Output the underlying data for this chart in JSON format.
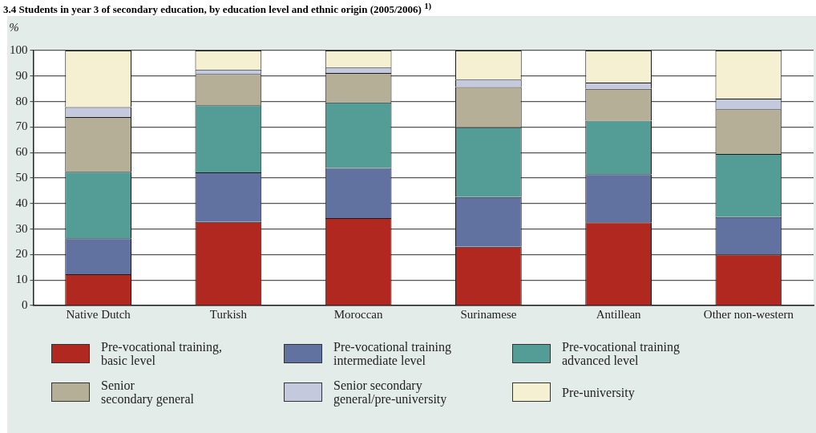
{
  "chart_data": {
    "type": "bar",
    "stacked": true,
    "title": "3.4  Students in year 3 of secondary education, by education level and ethnic origin (2005/2006) $^{1)}$",
    "ylabel": "%",
    "categories": [
      "Native Dutch",
      "Turkish",
      "Moroccan",
      "Surinamese",
      "Antillean",
      "Other non-western"
    ],
    "series": [
      {
        "name": "Pre-vocational training,\nbasic level",
        "color": "#b0281f",
        "values": [
          12.3,
          32.8,
          34.3,
          23.0,
          32.6,
          20.0
        ]
      },
      {
        "name": "Pre-vocational training\nintermediate level",
        "color": "#6171a0",
        "values": [
          14.0,
          19.4,
          19.6,
          19.5,
          18.9,
          14.7
        ]
      },
      {
        "name": "Pre-vocational training\nadvanced level",
        "color": "#549d97",
        "values": [
          26.1,
          26.3,
          25.7,
          27.4,
          21.0,
          24.7
        ]
      },
      {
        "name": "Senior\nsecondary general",
        "color": "#b5af98",
        "values": [
          21.5,
          12.3,
          11.6,
          15.8,
          12.5,
          17.6
        ]
      },
      {
        "name": "Senior secondary\ngeneral/pre-university",
        "color": "#c5c9dd",
        "values": [
          3.9,
          1.7,
          2.1,
          2.9,
          2.4,
          4.1
        ]
      },
      {
        "name": "Pre-university",
        "color": "#f5f0d2",
        "values": [
          22.2,
          7.5,
          6.7,
          11.4,
          12.6,
          18.9
        ]
      }
    ],
    "ylim": [
      0,
      100
    ],
    "yticks": [
      0,
      10,
      20,
      30,
      40,
      50,
      60,
      70,
      80,
      90,
      100
    ],
    "grid": "y",
    "legend": "bottom"
  }
}
